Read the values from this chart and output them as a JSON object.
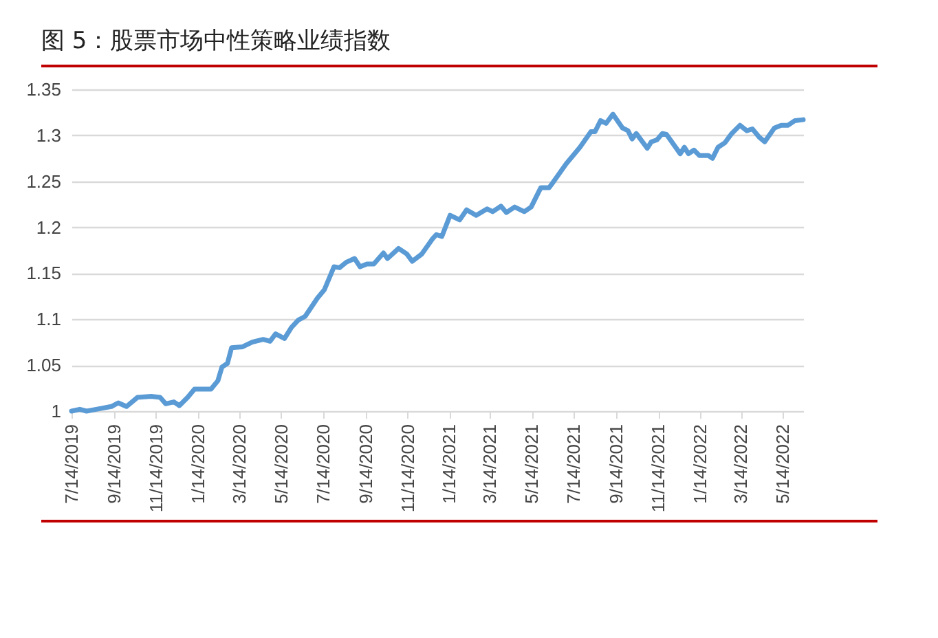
{
  "chart_data": {
    "type": "line",
    "title": "图 5：股票市场中性策略业绩指数",
    "x": [
      "2019-07-14",
      "2019-07-26",
      "2019-08-05",
      "2019-08-19",
      "2019-09-10",
      "2019-09-20",
      "2019-10-02",
      "2019-10-18",
      "2019-11-07",
      "2019-11-20",
      "2019-11-28",
      "2019-12-10",
      "2019-12-18",
      "2019-12-30",
      "2020-01-09",
      "2020-02-02",
      "2020-02-12",
      "2020-02-18",
      "2020-02-26",
      "2020-03-03",
      "2020-03-19",
      "2020-04-02",
      "2020-04-18",
      "2020-04-28",
      "2020-05-06",
      "2020-05-19",
      "2020-05-29",
      "2020-06-08",
      "2020-06-18",
      "2020-07-06",
      "2020-07-16",
      "2020-07-30",
      "2020-08-07",
      "2020-08-17",
      "2020-08-29",
      "2020-09-06",
      "2020-09-16",
      "2020-09-26",
      "2020-10-10",
      "2020-10-16",
      "2020-11-01",
      "2020-11-13",
      "2020-11-21",
      "2020-12-05",
      "2020-12-20",
      "2020-12-26",
      "2021-01-03",
      "2021-01-15",
      "2021-01-29",
      "2021-02-08",
      "2021-02-22",
      "2021-03-10",
      "2021-03-18",
      "2021-03-30",
      "2021-04-07",
      "2021-04-19",
      "2021-05-03",
      "2021-05-13",
      "2021-05-27",
      "2021-06-08",
      "2021-06-14",
      "2021-07-03",
      "2021-07-23",
      "2021-08-08",
      "2021-08-14",
      "2021-08-22",
      "2021-08-30",
      "2021-09-09",
      "2021-09-23",
      "2021-10-01",
      "2021-10-07",
      "2021-10-13",
      "2021-10-29",
      "2021-11-04",
      "2021-11-12",
      "2021-11-20",
      "2021-11-26",
      "2021-12-16",
      "2021-12-22",
      "2021-12-28",
      "2022-01-05",
      "2022-01-13",
      "2022-01-26",
      "2022-02-01",
      "2022-02-09",
      "2022-02-19",
      "2022-03-01",
      "2022-03-13",
      "2022-03-23",
      "2022-03-31",
      "2022-04-10",
      "2022-04-18",
      "2022-05-02",
      "2022-05-12",
      "2022-05-22",
      "2022-06-01",
      "2022-06-13"
    ],
    "series": [
      {
        "color": "#5b9bd5",
        "values": [
          1.0,
          1.002,
          1.0,
          1.002,
          1.005,
          1.009,
          1.005,
          1.015,
          1.016,
          1.015,
          1.008,
          1.01,
          1.006,
          1.015,
          1.024,
          1.024,
          1.033,
          1.048,
          1.052,
          1.069,
          1.07,
          1.075,
          1.078,
          1.076,
          1.084,
          1.079,
          1.091,
          1.099,
          1.103,
          1.123,
          1.132,
          1.157,
          1.156,
          1.162,
          1.166,
          1.157,
          1.16,
          1.16,
          1.172,
          1.166,
          1.177,
          1.171,
          1.163,
          1.171,
          1.187,
          1.192,
          1.19,
          1.213,
          1.208,
          1.219,
          1.213,
          1.22,
          1.217,
          1.223,
          1.216,
          1.222,
          1.217,
          1.222,
          1.243,
          1.243,
          1.249,
          1.269,
          1.287,
          1.304,
          1.304,
          1.316,
          1.313,
          1.323,
          1.308,
          1.305,
          1.296,
          1.302,
          1.286,
          1.293,
          1.295,
          1.302,
          1.301,
          1.28,
          1.287,
          1.28,
          1.284,
          1.278,
          1.278,
          1.275,
          1.287,
          1.292,
          1.302,
          1.311,
          1.305,
          1.307,
          1.298,
          1.293,
          1.308,
          1.311,
          1.311,
          1.316,
          1.317
        ]
      }
    ],
    "xlim": [
      "2019-07-14",
      "2022-06-13"
    ],
    "xticks": [
      {
        "value": "2019-07-14",
        "label": "7/14/2019"
      },
      {
        "value": "2019-09-14",
        "label": "9/14/2019"
      },
      {
        "value": "2019-11-14",
        "label": "11/14/2019"
      },
      {
        "value": "2020-01-14",
        "label": "1/14/2020"
      },
      {
        "value": "2020-03-14",
        "label": "3/14/2020"
      },
      {
        "value": "2020-05-14",
        "label": "5/14/2020"
      },
      {
        "value": "2020-07-14",
        "label": "7/14/2020"
      },
      {
        "value": "2020-09-14",
        "label": "9/14/2020"
      },
      {
        "value": "2020-11-14",
        "label": "11/14/2020"
      },
      {
        "value": "2021-01-14",
        "label": "1/14/2021"
      },
      {
        "value": "2021-03-14",
        "label": "3/14/2021"
      },
      {
        "value": "2021-05-14",
        "label": "5/14/2021"
      },
      {
        "value": "2021-07-14",
        "label": "7/14/2021"
      },
      {
        "value": "2021-09-14",
        "label": "9/14/2021"
      },
      {
        "value": "2021-11-14",
        "label": "11/14/2021"
      },
      {
        "value": "2022-01-14",
        "label": "1/14/2022"
      },
      {
        "value": "2022-03-14",
        "label": "3/14/2022"
      },
      {
        "value": "2022-05-14",
        "label": "5/14/2022"
      }
    ],
    "ylim": [
      1,
      1.35
    ],
    "yticks": [
      1,
      1.05,
      1.1,
      1.15,
      1.2,
      1.25,
      1.3,
      1.35
    ],
    "grid": "y",
    "legend": false
  }
}
